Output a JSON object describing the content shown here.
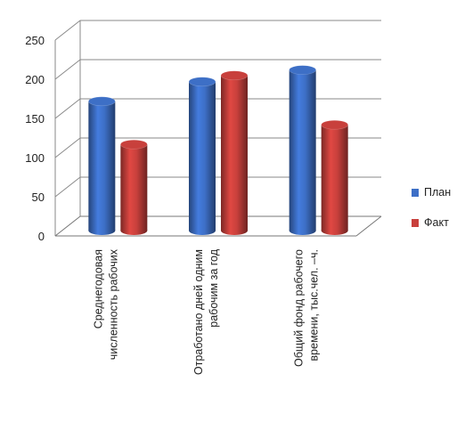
{
  "chart_data": {
    "type": "bar",
    "variant": "3d-cylinder",
    "title": "",
    "xlabel": "",
    "ylabel": "",
    "categories": [
      [
        "Среднегодовая",
        "численность рабочих"
      ],
      [
        "Отработано дней одним",
        "рабочим за год"
      ],
      [
        "Общий фонд рабочего",
        "времени, тыс.чел. –ч."
      ]
    ],
    "series": [
      {
        "name": "План",
        "color": "#3d6fc6",
        "values": [
          165,
          190,
          205
        ]
      },
      {
        "name": "Факт",
        "color": "#c8403c",
        "values": [
          110,
          198,
          135
        ]
      }
    ],
    "ylim": [
      0,
      250
    ],
    "yticks": [
      0,
      50,
      100,
      150,
      200,
      250
    ],
    "grid": true,
    "legend_position": "right"
  }
}
